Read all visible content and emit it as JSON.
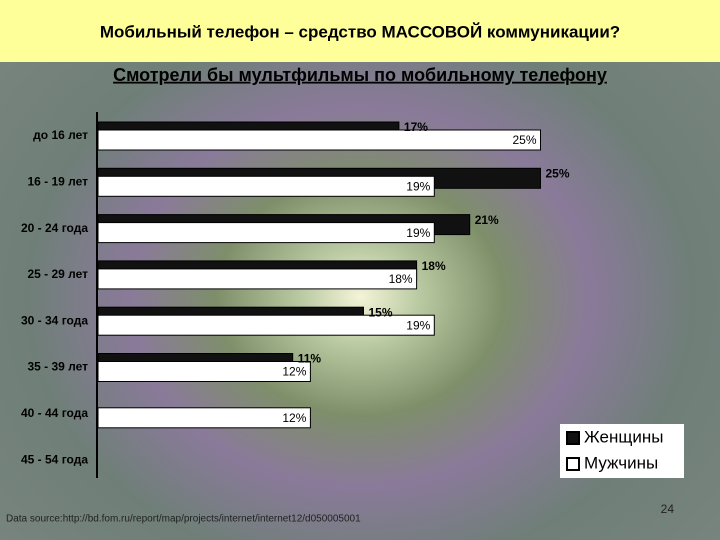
{
  "header": {
    "title": "Мобильный телефон – средство МАССОВОЙ коммуникации?"
  },
  "chart_data": {
    "type": "bar",
    "orientation": "horizontal",
    "title": "Смотрели бы мультфильмы по мобильному телефону",
    "categories": [
      "до 16 лет",
      "16 - 19 лет",
      "20 - 24 года",
      "25 - 29 лет",
      "30 - 34 года",
      "35 - 39 лет",
      "40 - 44 года",
      "45 - 54 года"
    ],
    "series": [
      {
        "name": "Женщины",
        "color": "#111111",
        "values": [
          17,
          25,
          21,
          18,
          15,
          11,
          null,
          null
        ],
        "value_labels": [
          "17%",
          "25%",
          "21%",
          "18%",
          "15%",
          "11%",
          null,
          null
        ]
      },
      {
        "name": "Мужчины",
        "color": "#ffffff",
        "values": [
          25,
          19,
          19,
          18,
          19,
          12,
          12,
          null
        ],
        "value_labels": [
          "25%",
          "19%",
          "19%",
          "18%",
          "19%",
          "12%",
          "12%",
          null
        ]
      }
    ],
    "legend": "bottom-right"
  },
  "footer": {
    "source": "Data source:http://bd.fom.ru/report/map/projects/internet/internet12/d050005001",
    "page": "24"
  }
}
